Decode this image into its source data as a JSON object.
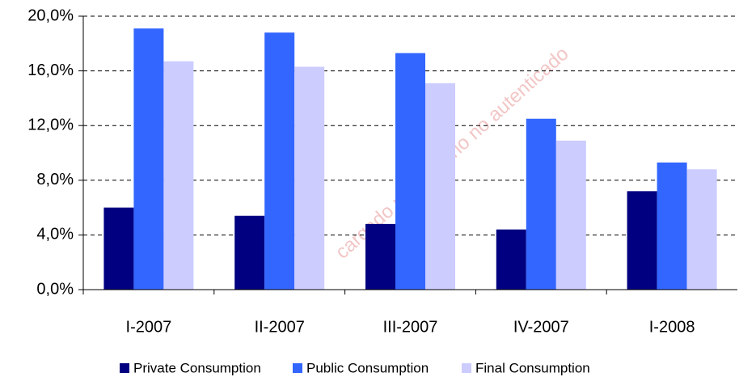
{
  "chart_data": {
    "type": "bar",
    "categories": [
      "I-2007",
      "II-2007",
      "III-2007",
      "IV-2007",
      "I-2008"
    ],
    "series": [
      {
        "name": "Private Consumption",
        "color": "#000080",
        "values": [
          6.0,
          5.4,
          4.8,
          4.4,
          7.2
        ]
      },
      {
        "name": "Public Consumption",
        "color": "#3366ff",
        "values": [
          19.1,
          18.8,
          17.3,
          12.5,
          9.3
        ]
      },
      {
        "name": "Final Consumption",
        "color": "#ccccff",
        "values": [
          16.7,
          16.3,
          15.1,
          10.9,
          8.8
        ]
      }
    ],
    "ylim": [
      0,
      20
    ],
    "yticks": [
      {
        "value": 0,
        "label": "0,0%"
      },
      {
        "value": 4,
        "label": "4,0%"
      },
      {
        "value": 8,
        "label": "8,0%"
      },
      {
        "value": 12,
        "label": "12,0%"
      },
      {
        "value": 16,
        "label": "16,0%"
      },
      {
        "value": 20,
        "label": "20,0%"
      }
    ],
    "grid": true,
    "legend": "bottom",
    "watermark": "cargado por usuario no autenticado"
  }
}
